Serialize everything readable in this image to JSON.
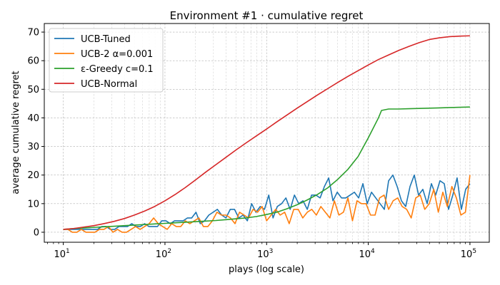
{
  "chart_data": {
    "type": "line",
    "title": "Environment #1 · cumulative regret",
    "xlabel": "plays (log scale)",
    "ylabel": "average cumulative regret",
    "xscale": "log",
    "xlim": [
      6.5,
      155000
    ],
    "ylim": [
      -3.5,
      73
    ],
    "xticks": [
      10,
      100,
      1000,
      10000,
      100000
    ],
    "xtick_labels": [
      {
        "base": "10",
        "exp": "1"
      },
      {
        "base": "10",
        "exp": "2"
      },
      {
        "base": "10",
        "exp": "3"
      },
      {
        "base": "10",
        "exp": "4"
      },
      {
        "base": "10",
        "exp": "5"
      }
    ],
    "yticks": [
      0,
      10,
      20,
      30,
      40,
      50,
      60,
      70
    ],
    "ytick_labels": [
      "0",
      "10",
      "20",
      "30",
      "40",
      "50",
      "60",
      "70"
    ],
    "grid": true,
    "legend_position": "top-left",
    "series": [
      {
        "name": "UCB-Tuned",
        "color": "#1f77b4",
        "x": [
          10,
          11,
          12,
          13,
          14,
          15,
          16,
          18,
          20,
          22,
          25,
          28,
          32,
          36,
          40,
          45,
          50,
          56,
          63,
          71,
          80,
          90,
          100,
          112,
          126,
          141,
          159,
          178,
          200,
          224,
          251,
          282,
          316,
          355,
          398,
          447,
          501,
          562,
          631,
          708,
          794,
          891,
          1000,
          1122,
          1259,
          1413,
          1585,
          1778,
          1995,
          2239,
          2512,
          2818,
          3162,
          3548,
          3981,
          4467,
          5012,
          5623,
          6310,
          7079,
          7943,
          8913,
          10000,
          11220,
          12589,
          14125,
          15849,
          17783,
          19953,
          22387,
          25119,
          28184,
          31623,
          35481,
          39811,
          44668,
          50119,
          56234,
          63096,
          70795,
          79433,
          89125,
          100000
        ],
        "y": [
          1,
          1,
          1,
          1,
          1,
          1,
          1,
          1,
          1,
          2,
          2,
          1,
          1,
          2,
          2,
          2,
          3,
          2,
          2,
          3,
          2,
          2,
          2,
          4,
          4,
          3,
          4,
          4,
          4,
          5,
          5,
          7,
          3,
          4,
          6,
          7,
          8,
          6,
          5,
          8,
          8,
          5,
          6,
          4,
          10,
          7,
          9,
          8,
          13,
          5,
          9,
          10,
          12,
          8,
          13,
          10,
          11,
          8,
          13,
          13,
          12,
          16,
          19,
          11,
          14,
          12,
          12,
          13,
          14,
          12,
          17,
          10,
          14,
          12,
          10,
          8,
          18,
          20,
          16,
          11,
          9,
          16,
          20
        ],
        "y2": [
          13,
          15,
          10,
          17,
          13,
          18,
          17,
          8,
          13,
          19,
          8,
          15,
          17
        ]
      },
      {
        "name": "UCB-2 α=0.001",
        "color": "#ff7f0e",
        "x": [
          10,
          11,
          12,
          13,
          14,
          15,
          16,
          18,
          20,
          22,
          25,
          28,
          32,
          36,
          40,
          45,
          50,
          56,
          63,
          71,
          80,
          90,
          100,
          112,
          126,
          141,
          159,
          178,
          200,
          224,
          251,
          282,
          316,
          355,
          398,
          447,
          501,
          562,
          631,
          708,
          794,
          891,
          1000,
          1122,
          1259,
          1413,
          1585,
          1778,
          1995,
          2239,
          2512,
          2818,
          3162,
          3548,
          3981,
          4467,
          5012,
          5623,
          6310,
          7079,
          7943,
          8913,
          10000,
          11220,
          12589,
          14125,
          15849,
          17783,
          19953,
          22387,
          25119,
          28184,
          31623,
          35481,
          39811,
          44668,
          50119,
          56234,
          63096,
          70795,
          79433,
          89125,
          100000
        ],
        "y": [
          1,
          1,
          0,
          0,
          1,
          0,
          0,
          0,
          1,
          1,
          2,
          0,
          1,
          0,
          0,
          1,
          2,
          1,
          2,
          3,
          5,
          3,
          2,
          1,
          3,
          2,
          2,
          4,
          3,
          4,
          5,
          2,
          2,
          4,
          7,
          6,
          6,
          5,
          3,
          7,
          6,
          5,
          8,
          7,
          9,
          4,
          6,
          8,
          6,
          7,
          3,
          8,
          8,
          5,
          7,
          8,
          6,
          9,
          7,
          5,
          11,
          6,
          7,
          12,
          4,
          11,
          10,
          10,
          6,
          6,
          12,
          13,
          8,
          11,
          12,
          9,
          8,
          5,
          12,
          13,
          8,
          10,
          15
        ],
        "y2": [
          7,
          14,
          9,
          16,
          12,
          6,
          7,
          20
        ]
      },
      {
        "name": "ε-Greedy c=0.1",
        "color": "#2ca02c",
        "x": [
          10,
          12.6,
          15.8,
          20,
          25,
          31.6,
          40,
          50,
          63,
          79,
          100,
          126,
          158,
          200,
          251,
          316,
          398,
          501,
          631,
          794,
          1000,
          1259,
          1585,
          1995,
          2512,
          3162,
          3981,
          5012,
          6310,
          7943,
          10000,
          12589,
          13500,
          15849,
          19953,
          25119,
          31623,
          39811,
          50119,
          63096,
          79433,
          100000
        ],
        "y": [
          1,
          1.3,
          1.5,
          1.7,
          1.9,
          2.1,
          2.3,
          2.5,
          2.7,
          2.9,
          3.1,
          3.3,
          3.5,
          3.7,
          3.9,
          4.1,
          4.4,
          4.7,
          5.0,
          5.5,
          6.2,
          7.0,
          8.2,
          9.6,
          11.3,
          13.2,
          15.5,
          18.5,
          22.0,
          26.5,
          33.0,
          40.0,
          42.6,
          43.1,
          43.1,
          43.2,
          43.3,
          43.4,
          43.5,
          43.6,
          43.7,
          43.8
        ]
      },
      {
        "name": "UCB-Normal",
        "color": "#d62728",
        "x": [
          10,
          12.6,
          15.8,
          20,
          25,
          31.6,
          40,
          50,
          63,
          79,
          100,
          126,
          158,
          200,
          251,
          316,
          398,
          501,
          631,
          794,
          1000,
          1259,
          1585,
          1995,
          2512,
          3162,
          3981,
          5012,
          6310,
          7943,
          10000,
          12589,
          15849,
          19953,
          25119,
          31623,
          39811,
          50119,
          63096,
          79433,
          100000
        ],
        "y": [
          1,
          1.3,
          1.8,
          2.3,
          3.0,
          3.8,
          4.8,
          6.0,
          7.4,
          9.0,
          11.0,
          13.2,
          15.6,
          18.3,
          21.0,
          23.6,
          26.2,
          28.8,
          31.3,
          33.7,
          36.1,
          38.6,
          41.0,
          43.4,
          45.7,
          48.0,
          50.2,
          52.4,
          54.5,
          56.5,
          58.5,
          60.4,
          62.0,
          63.6,
          65.0,
          66.3,
          67.4,
          68.0,
          68.4,
          68.6,
          68.7
        ]
      }
    ]
  }
}
